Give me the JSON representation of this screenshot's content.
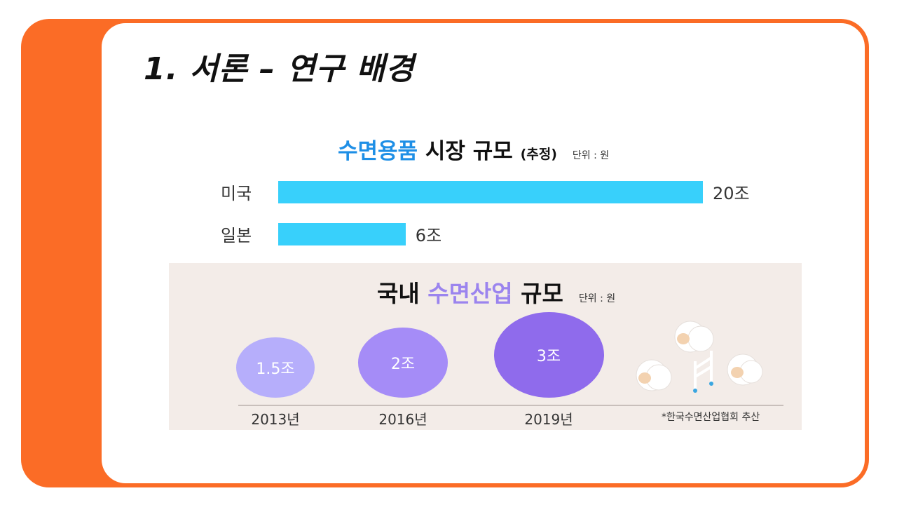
{
  "slide": {
    "title": "1. 서론 – 연구 배경"
  },
  "chart_data": [
    {
      "type": "bar",
      "title_highlight": "수면용품",
      "title_rest": " 시장 규모",
      "title_suffix": "(추정)",
      "unit": "단위 : 원",
      "orientation": "horizontal",
      "categories": [
        "미국",
        "일본"
      ],
      "values": [
        20,
        6
      ],
      "value_labels": [
        "20조",
        "6조"
      ],
      "bar_color": "#38d0fb",
      "highlight_color": "#1e8fe6"
    },
    {
      "type": "bubble",
      "title_pre": "국내 ",
      "title_highlight": "수면산업",
      "title_rest": " 규모",
      "unit": "단위 : 원",
      "categories": [
        "2013년",
        "2016년",
        "2019년"
      ],
      "values": [
        1.5,
        2,
        3
      ],
      "value_labels": [
        "1.5조",
        "2조",
        "3조"
      ],
      "colors": [
        "#b6aefb",
        "#a58cf7",
        "#8f6bec"
      ],
      "highlight_color": "#9b84ee",
      "source": "*한국수면산업협회 추산"
    }
  ]
}
